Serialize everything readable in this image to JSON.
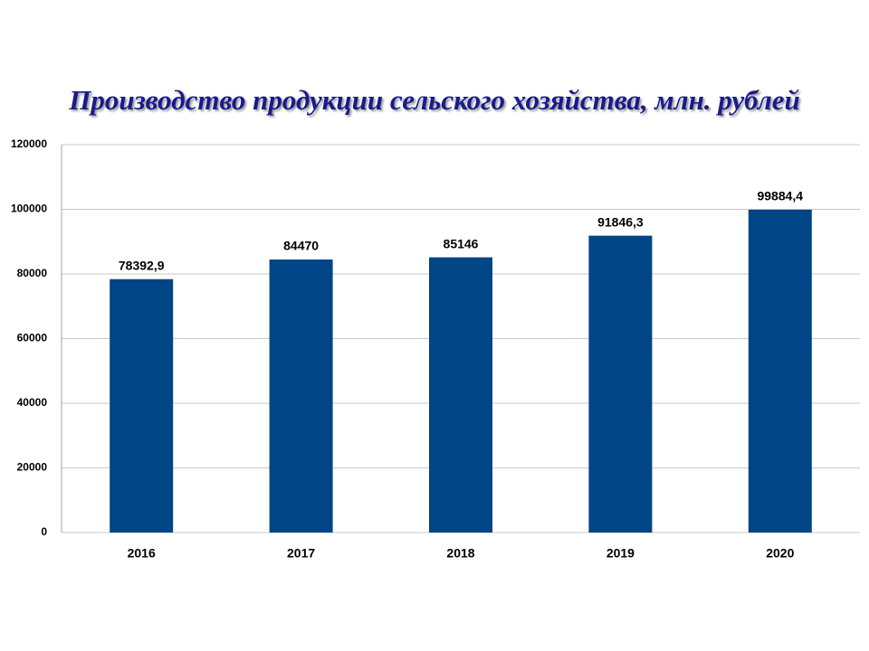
{
  "chart_data": {
    "type": "bar",
    "title": "Производство продукции сельского хозяйства, млн. рублей",
    "categories": [
      "2016",
      "2017",
      "2018",
      "2019",
      "2020"
    ],
    "values": [
      78392.9,
      84470,
      85146,
      91846.3,
      99884.4
    ],
    "value_labels": [
      "78392,9",
      "84470",
      "85146",
      "91846,3",
      "99884,4"
    ],
    "color": "#004586",
    "ylim": [
      0,
      120000
    ],
    "yticks": [
      0,
      20000,
      40000,
      60000,
      80000,
      100000,
      120000
    ],
    "grid": true
  }
}
